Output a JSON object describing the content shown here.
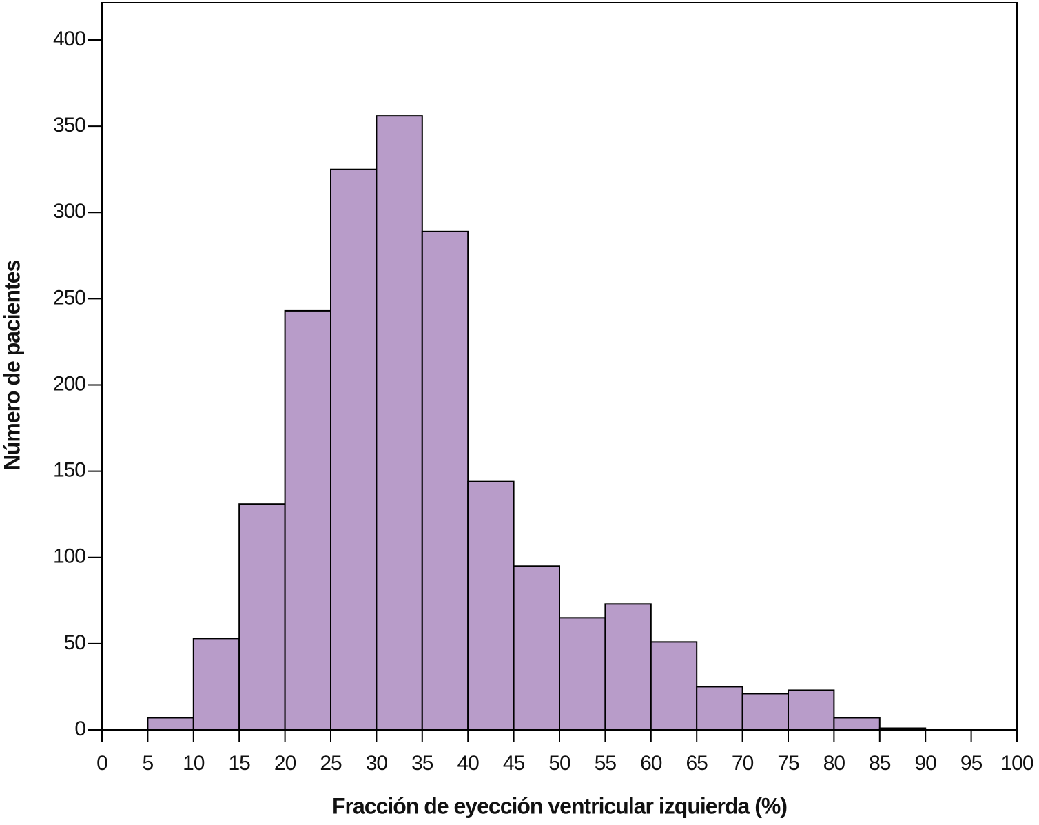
{
  "chart_data": {
    "type": "histogram",
    "xlabel": "Fracción de eyección ventricular izquierda (%)",
    "ylabel": "Número de pacientes",
    "bins": [
      5,
      10,
      15,
      20,
      25,
      30,
      35,
      40,
      45,
      50,
      55,
      60,
      65,
      70,
      75,
      80,
      85,
      90
    ],
    "values": [
      7,
      53,
      131,
      243,
      325,
      356,
      289,
      144,
      95,
      65,
      73,
      51,
      25,
      21,
      23,
      7,
      1
    ],
    "color": "#b89cc9",
    "xlim": [
      0,
      100
    ],
    "xticks": [
      0,
      5,
      10,
      15,
      20,
      25,
      30,
      35,
      40,
      45,
      50,
      55,
      60,
      65,
      70,
      75,
      80,
      85,
      90,
      95,
      100
    ],
    "ylim": [
      0,
      420
    ],
    "yticks": [
      0,
      50,
      100,
      150,
      200,
      250,
      300,
      350,
      400
    ]
  }
}
